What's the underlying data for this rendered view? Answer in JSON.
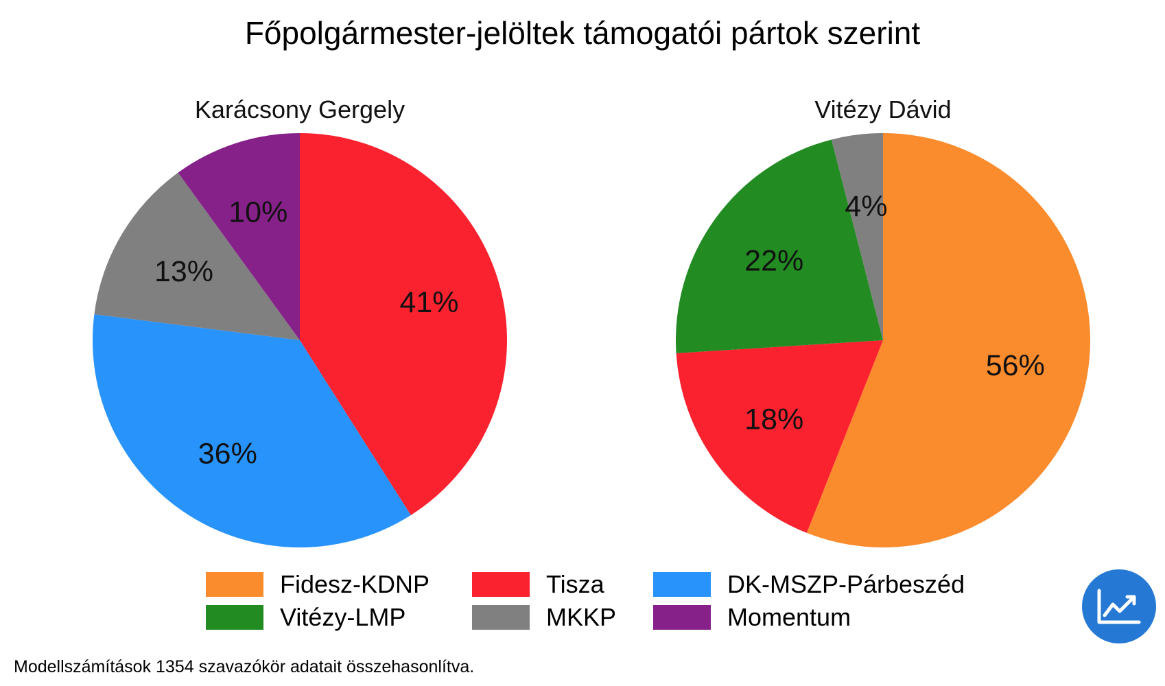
{
  "title": "Főpolgármester-jelöltek támogatói pártok szerint",
  "chart_data": [
    {
      "type": "pie",
      "title": "Karácsony Gergely",
      "slices": [
        {
          "label": "Tisza",
          "value": 41,
          "text": "41%",
          "color": "#fb2230"
        },
        {
          "label": "DK-MSZP-Párbeszéd",
          "value": 36,
          "text": "36%",
          "color": "#2893fb"
        },
        {
          "label": "MKKP",
          "value": 13,
          "text": "13%",
          "color": "#808080"
        },
        {
          "label": "Momentum",
          "value": 10,
          "text": "10%",
          "color": "#87218a"
        }
      ]
    },
    {
      "type": "pie",
      "title": "Vitézy Dávid",
      "slices": [
        {
          "label": "Fidesz-KDNP",
          "value": 56,
          "text": "56%",
          "color": "#fb8c2d"
        },
        {
          "label": "Tisza",
          "value": 18,
          "text": "18%",
          "color": "#fb2230"
        },
        {
          "label": "Vitézy-LMP",
          "value": 22,
          "text": "22%",
          "color": "#228b22"
        },
        {
          "label": "MKKP",
          "value": 4,
          "text": "4%",
          "color": "#808080"
        }
      ]
    }
  ],
  "legend": [
    {
      "label": "Fidesz-KDNP",
      "color": "#fb8c2d"
    },
    {
      "label": "Tisza",
      "color": "#fb2230"
    },
    {
      "label": "DK-MSZP-Párbeszéd",
      "color": "#2893fb"
    },
    {
      "label": "Vitézy-LMP",
      "color": "#228b22"
    },
    {
      "label": "MKKP",
      "color": "#808080"
    },
    {
      "label": "Momentum",
      "color": "#87218a"
    }
  ],
  "footnote": "Modellszámítások 1354 szavazókör adatait összehasonlítva.",
  "logo_icon": "trend-chart-icon",
  "logo_color": "#2579d4"
}
